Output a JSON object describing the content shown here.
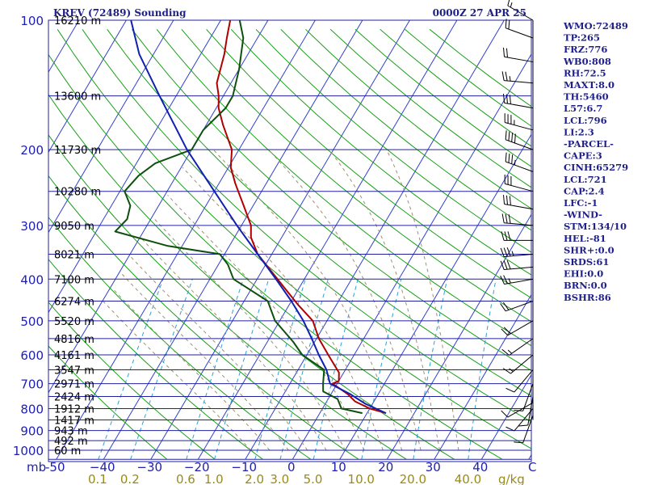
{
  "chart_data": {
    "type": "line",
    "title": "KREV (72489) Sounding",
    "valid_time": "0000Z 27 APR 25",
    "pressure_axis": {
      "unit_label": "mb",
      "levels": [
        100,
        200,
        300,
        400,
        500,
        600,
        700,
        800,
        900,
        1000
      ],
      "labels": [
        "100",
        "200",
        "300",
        "400",
        "500",
        "600",
        "700",
        "800",
        "900",
        "1000"
      ]
    },
    "height_labels": [
      {
        "p": 100,
        "text": "16210 m"
      },
      {
        "p": 150,
        "text": "13600 m"
      },
      {
        "p": 200,
        "text": "11730 m"
      },
      {
        "p": 250,
        "text": "10280 m"
      },
      {
        "p": 300,
        "text": "9050 m"
      },
      {
        "p": 350,
        "text": "8021 m"
      },
      {
        "p": 400,
        "text": "7100 m"
      },
      {
        "p": 450,
        "text": "6274 m"
      },
      {
        "p": 500,
        "text": "5520 m"
      },
      {
        "p": 550,
        "text": "4816 m"
      },
      {
        "p": 600,
        "text": "4161 m"
      },
      {
        "p": 650,
        "text": "3547 m"
      },
      {
        "p": 700,
        "text": "2971 m"
      },
      {
        "p": 750,
        "text": "2424 m"
      },
      {
        "p": 800,
        "text": "1912 m"
      },
      {
        "p": 850,
        "text": "1417 m"
      },
      {
        "p": 900,
        "text": "943 m"
      },
      {
        "p": 950,
        "text": "492 m"
      },
      {
        "p": 1000,
        "text": "60 m"
      }
    ],
    "temperature_axis": {
      "unit_label": "C",
      "values": [
        -50,
        -40,
        -30,
        -20,
        -10,
        0,
        10,
        20,
        30,
        40
      ],
      "labels": [
        "-50",
        "−40",
        "−30",
        "−20",
        "−10",
        "0",
        "10",
        "20",
        "30",
        "40"
      ]
    },
    "mixing_ratio_axis": {
      "unit_label": "g/kg",
      "values": [
        0.1,
        0.2,
        0.6,
        1.0,
        2.0,
        3.0,
        5.0,
        10.0,
        20.0,
        40.0
      ],
      "labels": [
        "0.1",
        "0.2",
        "0.6",
        "1.0",
        "2.0",
        "3.0",
        "5.0",
        "10.0",
        "20.0",
        "40.0"
      ]
    },
    "series": [
      {
        "name": "",
        "role": "temperature",
        "color": "#b00000",
        "points": [
          [
            820,
            14
          ],
          [
            800,
            10
          ],
          [
            770,
            6
          ],
          [
            740,
            3.5
          ],
          [
            700,
            -1
          ],
          [
            690,
            0
          ],
          [
            660,
            -1
          ],
          [
            600,
            -5.5
          ],
          [
            550,
            -9.5
          ],
          [
            500,
            -13
          ],
          [
            460,
            -18
          ],
          [
            420,
            -23
          ],
          [
            380,
            -28.5
          ],
          [
            350,
            -33
          ],
          [
            320,
            -36.5
          ],
          [
            300,
            -38
          ],
          [
            270,
            -42
          ],
          [
            240,
            -46.5
          ],
          [
            220,
            -49.5
          ],
          [
            200,
            -51.5
          ],
          [
            175,
            -56.5
          ],
          [
            160,
            -59.5
          ],
          [
            150,
            -61
          ],
          [
            140,
            -63
          ],
          [
            120,
            -65
          ],
          [
            110,
            -66.5
          ],
          [
            100,
            -68
          ]
        ]
      },
      {
        "name": "",
        "role": "dewpoint",
        "color": "#0f4f0f",
        "points": [
          [
            820,
            9
          ],
          [
            800,
            4
          ],
          [
            760,
            2
          ],
          [
            730,
            -2
          ],
          [
            700,
            -3
          ],
          [
            650,
            -4.5
          ],
          [
            600,
            -11
          ],
          [
            560,
            -14.5
          ],
          [
            500,
            -21
          ],
          [
            450,
            -25
          ],
          [
            400,
            -35
          ],
          [
            370,
            -38
          ],
          [
            350,
            -41
          ],
          [
            335,
            -53
          ],
          [
            310,
            -66
          ],
          [
            290,
            -65
          ],
          [
            270,
            -66
          ],
          [
            250,
            -69
          ],
          [
            230,
            -68
          ],
          [
            215,
            -66
          ],
          [
            200,
            -60
          ],
          [
            180,
            -60
          ],
          [
            160,
            -58
          ],
          [
            150,
            -58
          ],
          [
            130,
            -60
          ],
          [
            110,
            -63
          ],
          [
            100,
            -66
          ]
        ]
      },
      {
        "name": "",
        "role": "parcel",
        "color": "#1020b0",
        "points": [
          [
            820,
            14
          ],
          [
            780,
            8.5
          ],
          [
            740,
            4
          ],
          [
            700,
            -1.5
          ],
          [
            650,
            -4
          ],
          [
            600,
            -7.5
          ],
          [
            550,
            -11
          ],
          [
            500,
            -15
          ],
          [
            450,
            -20
          ],
          [
            400,
            -26
          ],
          [
            350,
            -33
          ],
          [
            300,
            -41
          ],
          [
            250,
            -50
          ],
          [
            200,
            -61
          ],
          [
            150,
            -73.5
          ],
          [
            120,
            -83
          ],
          [
            100,
            -89
          ]
        ]
      }
    ],
    "wind_barbs": [
      {
        "p": 100,
        "dir": 300,
        "spd": 15
      },
      {
        "p": 110,
        "dir": 290,
        "spd": 20
      },
      {
        "p": 125,
        "dir": 280,
        "spd": 20
      },
      {
        "p": 140,
        "dir": 275,
        "spd": 25
      },
      {
        "p": 160,
        "dir": 280,
        "spd": 30
      },
      {
        "p": 180,
        "dir": 285,
        "spd": 35
      },
      {
        "p": 200,
        "dir": 290,
        "spd": 40
      },
      {
        "p": 225,
        "dir": 290,
        "spd": 35
      },
      {
        "p": 250,
        "dir": 285,
        "spd": 30
      },
      {
        "p": 275,
        "dir": 280,
        "spd": 30
      },
      {
        "p": 300,
        "dir": 275,
        "spd": 30
      },
      {
        "p": 325,
        "dir": 270,
        "spd": 30
      },
      {
        "p": 350,
        "dir": 265,
        "spd": 35
      },
      {
        "p": 375,
        "dir": 265,
        "spd": 30
      },
      {
        "p": 400,
        "dir": 260,
        "spd": 25
      },
      {
        "p": 450,
        "dir": 250,
        "spd": 20
      },
      {
        "p": 500,
        "dir": 240,
        "spd": 20
      },
      {
        "p": 550,
        "dir": 235,
        "spd": 15
      },
      {
        "p": 600,
        "dir": 230,
        "spd": 15
      },
      {
        "p": 650,
        "dir": 220,
        "spd": 10
      },
      {
        "p": 700,
        "dir": 200,
        "spd": 10
      },
      {
        "p": 750,
        "dir": 190,
        "spd": 10
      },
      {
        "p": 775,
        "dir": 240,
        "spd": 10
      },
      {
        "p": 800,
        "dir": 220,
        "spd": 10
      },
      {
        "p": 830,
        "dir": 200,
        "spd": 10
      }
    ],
    "indices": [
      "WMO:72489",
      "TP:265",
      "FRZ:776",
      "WB0:808",
      "RH:72.5",
      "MAXT:8.0",
      "TH:5460",
      "L57:6.7",
      "LCL:796",
      "LI:2.3",
      "-PARCEL-",
      "CAPE:3",
      "CINH:65279",
      "LCL:721",
      "CAP:2.4",
      "LFC:-1",
      "-WIND-",
      "STM:134/10",
      "HEL:-81",
      "SHR+:0.0",
      "SRDS:61",
      "EHI:0.0",
      "BRN:0.0",
      "BSHR:86"
    ],
    "colors": {
      "isobar": "#2020a0",
      "isotherm": "#3040d0",
      "dry_adiabat": "#18a018",
      "moist_adiabat": "#a09070",
      "mixing_ratio": "#30a0d0",
      "axis_text": "#2020b0",
      "mixing_text": "#9a8a1a"
    }
  }
}
